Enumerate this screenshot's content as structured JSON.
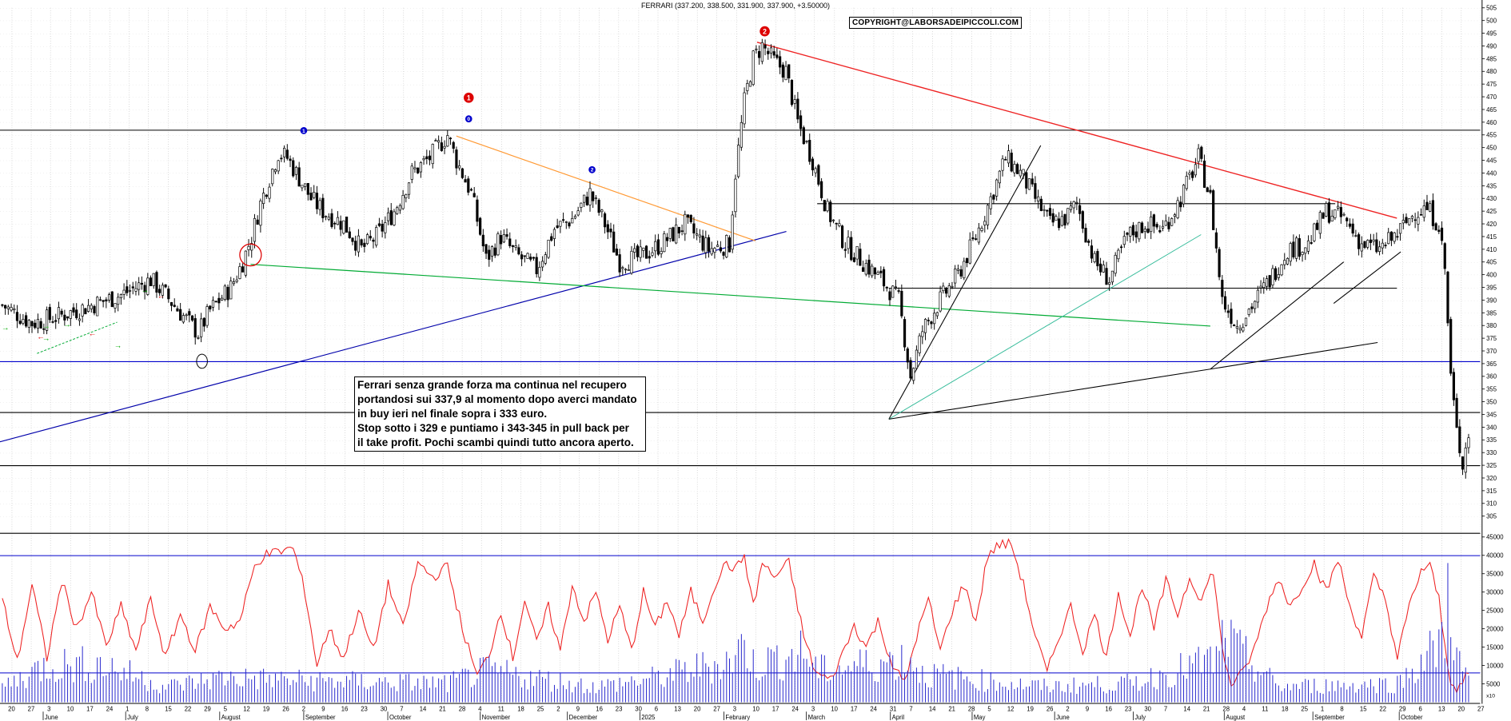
{
  "chart_data": {
    "type": "candlestick",
    "title": "FERRARI (337.200, 338.500, 331.900, 337.900, +3.50000)",
    "copyright": "COPYRIGHT@LABORSADEIPICCOLI.COM",
    "note_lines": [
      "Ferrari senza grande forza ma continua nel recupero",
      "portandosi sui 337,9 al momento dopo averci mandato",
      "in buy ieri nel finale sopra i 333 euro.",
      "Stop sotto i 329 e puntiamo i 343-345 in pull back per",
      "il take profit. Pochi scambi quindi tutto ancora aperto."
    ],
    "price_axis": {
      "range": [
        305,
        505
      ],
      "ticks": [
        305,
        310,
        315,
        320,
        325,
        330,
        335,
        340,
        345,
        350,
        355,
        360,
        365,
        370,
        375,
        380,
        385,
        390,
        395,
        400,
        405,
        410,
        415,
        420,
        425,
        430,
        435,
        440,
        445,
        450,
        455,
        460,
        465,
        470,
        475,
        480,
        485,
        490,
        495,
        500,
        505
      ]
    },
    "volume_axis": {
      "range": [
        0,
        46000
      ],
      "ticks": [
        5000,
        10000,
        15000,
        20000,
        25000,
        30000,
        35000,
        40000,
        45000
      ],
      "unit_label": "x10"
    },
    "day_labels": [
      "20",
      "27",
      "3",
      "10",
      "17",
      "24",
      "1",
      "8",
      "15",
      "22",
      "29",
      "5",
      "12",
      "19",
      "26",
      "2",
      "9",
      "16",
      "23",
      "30",
      "7",
      "14",
      "21",
      "28",
      "4",
      "11",
      "18",
      "25",
      "2",
      "9",
      "16",
      "23",
      "30",
      "6",
      "13",
      "20",
      "27",
      "3",
      "10",
      "17",
      "24",
      "3",
      "10",
      "17",
      "24",
      "31",
      "7",
      "14",
      "21",
      "28",
      "5",
      "12",
      "19",
      "26",
      "2",
      "9",
      "16",
      "23",
      "30",
      "7",
      "14",
      "21",
      "28",
      "4",
      "11",
      "18",
      "25",
      "1",
      "8",
      "15",
      "22",
      "29",
      "6",
      "13",
      "20",
      "27"
    ],
    "month_labels": [
      "June",
      "July",
      "August",
      "September",
      "October",
      "November",
      "December",
      "2025",
      "February",
      "March",
      "April",
      "May",
      "June",
      "July",
      "August",
      "September",
      "October"
    ],
    "horizontal_levels": [
      {
        "value": 457,
        "color": "#000000"
      },
      {
        "value": 366,
        "color": "#0000cc"
      },
      {
        "value": 346,
        "color": "#000000"
      },
      {
        "value": 325,
        "color": "#000000"
      },
      {
        "value": 428,
        "color": "#000000"
      },
      {
        "value": 395,
        "color": "#000000"
      }
    ],
    "wave_labels": [
      {
        "text": "1",
        "color": "#0000cc"
      },
      {
        "text": "0",
        "color": "#0000cc"
      },
      {
        "text": "1",
        "color": "#dd0000"
      },
      {
        "text": "2",
        "color": "#0000cc"
      },
      {
        "text": "2",
        "color": "#dd0000"
      }
    ],
    "price_keypoints": [
      [
        0,
        388
      ],
      [
        10,
        381
      ],
      [
        20,
        384
      ],
      [
        30,
        388
      ],
      [
        40,
        392
      ],
      [
        50,
        398
      ],
      [
        55,
        392
      ],
      [
        60,
        385
      ],
      [
        66,
        377
      ],
      [
        70,
        386
      ],
      [
        77,
        395
      ],
      [
        81,
        405
      ],
      [
        84,
        415
      ],
      [
        87,
        428
      ],
      [
        90,
        438
      ],
      [
        93,
        448
      ],
      [
        96,
        446
      ],
      [
        100,
        438
      ],
      [
        104,
        430
      ],
      [
        108,
        425
      ],
      [
        115,
        420
      ],
      [
        121,
        410
      ],
      [
        126,
        415
      ],
      [
        132,
        425
      ],
      [
        138,
        440
      ],
      [
        144,
        446
      ],
      [
        150,
        455
      ],
      [
        153,
        445
      ],
      [
        158,
        432
      ],
      [
        163,
        406
      ],
      [
        168,
        415
      ],
      [
        173,
        408
      ],
      [
        180,
        402
      ],
      [
        186,
        418
      ],
      [
        192,
        422
      ],
      [
        198,
        432
      ],
      [
        203,
        420
      ],
      [
        208,
        405
      ],
      [
        215,
        407
      ],
      [
        222,
        412
      ],
      [
        230,
        420
      ],
      [
        238,
        410
      ],
      [
        245,
        412
      ],
      [
        247,
        440
      ],
      [
        250,
        468
      ],
      [
        253,
        485
      ],
      [
        256,
        490
      ],
      [
        260,
        484
      ],
      [
        264,
        480
      ],
      [
        268,
        460
      ],
      [
        273,
        445
      ],
      [
        278,
        425
      ],
      [
        284,
        412
      ],
      [
        290,
        405
      ],
      [
        296,
        398
      ],
      [
        302,
        390
      ],
      [
        306,
        360
      ],
      [
        310,
        378
      ],
      [
        316,
        390
      ],
      [
        322,
        400
      ],
      [
        328,
        415
      ],
      [
        333,
        430
      ],
      [
        338,
        446
      ],
      [
        343,
        440
      ],
      [
        348,
        430
      ],
      [
        353,
        420
      ],
      [
        358,
        422
      ],
      [
        362,
        428
      ],
      [
        368,
        405
      ],
      [
        373,
        398
      ],
      [
        379,
        415
      ],
      [
        385,
        420
      ],
      [
        391,
        418
      ],
      [
        397,
        430
      ],
      [
        403,
        446
      ],
      [
        407,
        430
      ],
      [
        411,
        390
      ],
      [
        416,
        380
      ],
      [
        421,
        388
      ],
      [
        427,
        398
      ],
      [
        433,
        410
      ],
      [
        440,
        412
      ],
      [
        446,
        425
      ],
      [
        452,
        422
      ],
      [
        458,
        412
      ],
      [
        464,
        410
      ],
      [
        470,
        416
      ],
      [
        476,
        425
      ],
      [
        480,
        426
      ],
      [
        484,
        420
      ],
      [
        486,
        402
      ],
      [
        488,
        360
      ],
      [
        490,
        338
      ],
      [
        492,
        326
      ],
      [
        494,
        338
      ]
    ],
    "oscillator_keypoints": [
      [
        0,
        28000
      ],
      [
        5,
        11000
      ],
      [
        10,
        32000
      ],
      [
        15,
        12000
      ],
      [
        20,
        33000
      ],
      [
        25,
        20000
      ],
      [
        30,
        30000
      ],
      [
        35,
        15000
      ],
      [
        40,
        26000
      ],
      [
        45,
        14000
      ],
      [
        50,
        28000
      ],
      [
        55,
        12000
      ],
      [
        60,
        24000
      ],
      [
        65,
        14000
      ],
      [
        70,
        26000
      ],
      [
        75,
        20000
      ],
      [
        80,
        22000
      ],
      [
        85,
        37000
      ],
      [
        88,
        40000
      ],
      [
        93,
        41000
      ],
      [
        98,
        42000
      ],
      [
        102,
        30000
      ],
      [
        106,
        10000
      ],
      [
        110,
        20000
      ],
      [
        115,
        12000
      ],
      [
        120,
        25000
      ],
      [
        125,
        14000
      ],
      [
        130,
        32000
      ],
      [
        135,
        20000
      ],
      [
        140,
        38000
      ],
      [
        145,
        34000
      ],
      [
        150,
        37000
      ],
      [
        155,
        20000
      ],
      [
        160,
        7000
      ],
      [
        164,
        13000
      ],
      [
        168,
        25000
      ],
      [
        172,
        12000
      ],
      [
        176,
        28000
      ],
      [
        180,
        16000
      ],
      [
        184,
        26000
      ],
      [
        188,
        14000
      ],
      [
        192,
        32000
      ],
      [
        196,
        22000
      ],
      [
        200,
        30000
      ],
      [
        204,
        17000
      ],
      [
        208,
        26000
      ],
      [
        212,
        14000
      ],
      [
        216,
        30000
      ],
      [
        220,
        20000
      ],
      [
        224,
        28000
      ],
      [
        228,
        18000
      ],
      [
        232,
        30000
      ],
      [
        236,
        22000
      ],
      [
        240,
        32000
      ],
      [
        244,
        38000
      ],
      [
        247,
        36000
      ],
      [
        250,
        40000
      ],
      [
        253,
        26000
      ],
      [
        256,
        38000
      ],
      [
        260,
        34000
      ],
      [
        265,
        38000
      ],
      [
        270,
        18000
      ],
      [
        274,
        8000
      ],
      [
        279,
        6000
      ],
      [
        283,
        13000
      ],
      [
        287,
        21000
      ],
      [
        291,
        15000
      ],
      [
        295,
        22000
      ],
      [
        300,
        10000
      ],
      [
        304,
        5000
      ],
      [
        308,
        18000
      ],
      [
        312,
        28000
      ],
      [
        316,
        14000
      ],
      [
        320,
        25000
      ],
      [
        324,
        32000
      ],
      [
        328,
        22000
      ],
      [
        332,
        40000
      ],
      [
        336,
        43000
      ],
      [
        340,
        43000
      ],
      [
        344,
        32000
      ],
      [
        348,
        18000
      ],
      [
        352,
        8000
      ],
      [
        356,
        18000
      ],
      [
        360,
        26000
      ],
      [
        364,
        14000
      ],
      [
        368,
        24000
      ],
      [
        372,
        12000
      ],
      [
        376,
        30000
      ],
      [
        380,
        18000
      ],
      [
        384,
        32000
      ],
      [
        388,
        20000
      ],
      [
        392,
        33000
      ],
      [
        396,
        24000
      ],
      [
        400,
        34000
      ],
      [
        404,
        28000
      ],
      [
        408,
        36000
      ],
      [
        411,
        14000
      ],
      [
        414,
        5000
      ],
      [
        418,
        8000
      ],
      [
        422,
        15000
      ],
      [
        426,
        26000
      ],
      [
        430,
        34000
      ],
      [
        434,
        26000
      ],
      [
        438,
        32000
      ],
      [
        442,
        38000
      ],
      [
        446,
        30000
      ],
      [
        450,
        39000
      ],
      [
        454,
        26000
      ],
      [
        458,
        18000
      ],
      [
        462,
        34000
      ],
      [
        466,
        28000
      ],
      [
        470,
        12000
      ],
      [
        474,
        26000
      ],
      [
        478,
        36000
      ],
      [
        481,
        37000
      ],
      [
        484,
        28000
      ],
      [
        486,
        15000
      ],
      [
        488,
        6000
      ],
      [
        490,
        4000
      ],
      [
        492,
        5000
      ],
      [
        494,
        8000
      ]
    ],
    "volume_keypoints": [
      [
        0,
        5000
      ],
      [
        15,
        12000
      ],
      [
        34,
        12000
      ],
      [
        55,
        5000
      ],
      [
        75,
        8000
      ],
      [
        100,
        7000
      ],
      [
        150,
        6000
      ],
      [
        163,
        10000
      ],
      [
        200,
        5000
      ],
      [
        222,
        8000
      ],
      [
        247,
        14000
      ],
      [
        250,
        20000
      ],
      [
        253,
        12000
      ],
      [
        270,
        16000
      ],
      [
        275,
        10000
      ],
      [
        306,
        14000
      ],
      [
        310,
        9000
      ],
      [
        350,
        5000
      ],
      [
        380,
        6000
      ],
      [
        410,
        14000
      ],
      [
        412,
        25000
      ],
      [
        414,
        18000
      ],
      [
        430,
        5000
      ],
      [
        470,
        6000
      ],
      [
        486,
        20000
      ],
      [
        487,
        42000
      ],
      [
        488,
        38000
      ],
      [
        489,
        20000
      ],
      [
        490,
        14000
      ],
      [
        492,
        10000
      ],
      [
        494,
        8000
      ]
    ]
  }
}
